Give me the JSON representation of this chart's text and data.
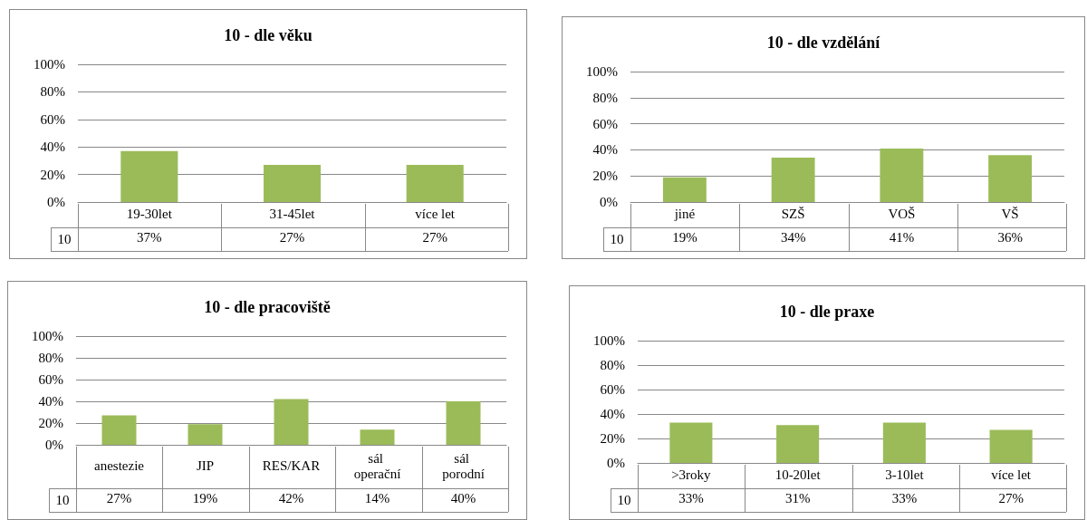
{
  "chart_data": [
    {
      "type": "bar",
      "title": "10 - dle věku",
      "categories": [
        "19-30let",
        "31-45let",
        "více let"
      ],
      "series": [
        {
          "name": "10",
          "color": "#9bbb59",
          "values": [
            37,
            27,
            27
          ],
          "value_labels": [
            "37%",
            "27%",
            "27%"
          ]
        }
      ],
      "ylim": [
        0,
        100
      ],
      "yticks": [
        {
          "value": 0,
          "label": "0%"
        },
        {
          "value": 20,
          "label": "20%"
        },
        {
          "value": 40,
          "label": "40%"
        },
        {
          "value": 60,
          "label": "60%"
        },
        {
          "value": 80,
          "label": "80%"
        },
        {
          "value": 100,
          "label": "100%"
        }
      ],
      "grid": "y",
      "legend": false
    },
    {
      "type": "bar",
      "title": "10 - dle vzdělání",
      "categories": [
        "jiné",
        "SZŠ",
        "VOŠ",
        "VŠ"
      ],
      "series": [
        {
          "name": "10",
          "color": "#9bbb59",
          "values": [
            19,
            34,
            41,
            36
          ],
          "value_labels": [
            "19%",
            "34%",
            "41%",
            "36%"
          ]
        }
      ],
      "ylim": [
        0,
        100
      ],
      "yticks": [
        {
          "value": 0,
          "label": "0%"
        },
        {
          "value": 20,
          "label": "20%"
        },
        {
          "value": 40,
          "label": "40%"
        },
        {
          "value": 60,
          "label": "60%"
        },
        {
          "value": 80,
          "label": "80%"
        },
        {
          "value": 100,
          "label": "100%"
        }
      ],
      "grid": "y",
      "legend": false
    },
    {
      "type": "bar",
      "title": "10 - dle pracoviště",
      "categories": [
        "anestezie",
        "JIP",
        "RES/KAR",
        "sál operační",
        "sál porodní"
      ],
      "series": [
        {
          "name": "10",
          "color": "#9bbb59",
          "values": [
            27,
            19,
            42,
            14,
            40
          ],
          "value_labels": [
            "27%",
            "19%",
            "42%",
            "14%",
            "40%"
          ]
        }
      ],
      "ylim": [
        0,
        100
      ],
      "yticks": [
        {
          "value": 0,
          "label": "0%"
        },
        {
          "value": 20,
          "label": "20%"
        },
        {
          "value": 40,
          "label": "40%"
        },
        {
          "value": 60,
          "label": "60%"
        },
        {
          "value": 80,
          "label": "80%"
        },
        {
          "value": 100,
          "label": "100%"
        }
      ],
      "grid": "y",
      "legend": false
    },
    {
      "type": "bar",
      "title": "10 - dle praxe",
      "categories": [
        ">3roky",
        "10-20let",
        "3-10let",
        "více let"
      ],
      "series": [
        {
          "name": "10",
          "color": "#9bbb59",
          "values": [
            33,
            31,
            33,
            27
          ],
          "value_labels": [
            "33%",
            "31%",
            "33%",
            "27%"
          ]
        }
      ],
      "ylim": [
        0,
        100
      ],
      "yticks": [
        {
          "value": 0,
          "label": "0%"
        },
        {
          "value": 20,
          "label": "20%"
        },
        {
          "value": 40,
          "label": "40%"
        },
        {
          "value": 60,
          "label": "60%"
        },
        {
          "value": 80,
          "label": "80%"
        },
        {
          "value": 100,
          "label": "100%"
        }
      ],
      "grid": "y",
      "legend": false
    }
  ]
}
